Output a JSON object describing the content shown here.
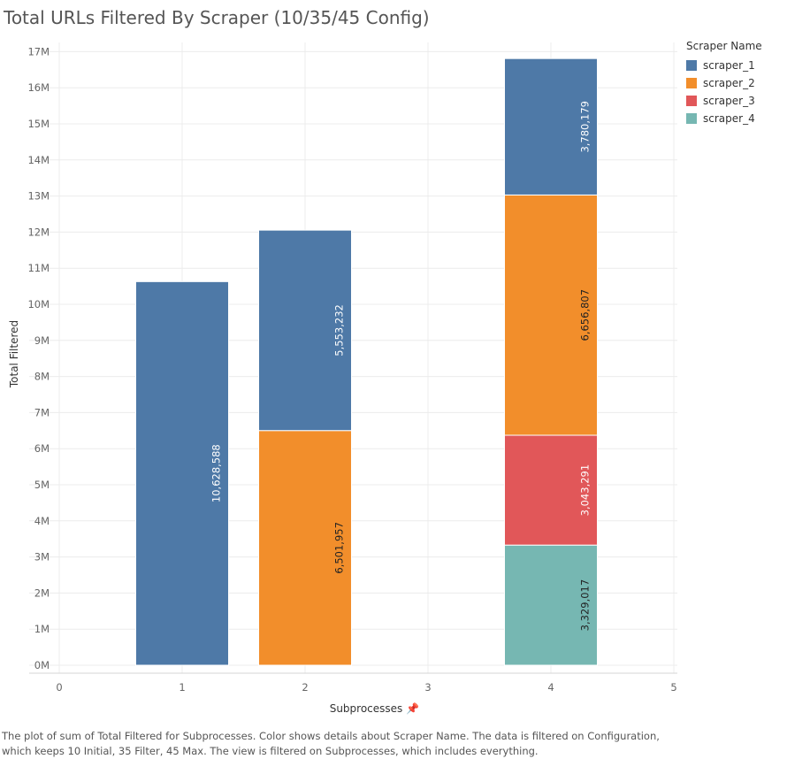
{
  "title": "Total URLs Filtered By Scraper (10/35/45 Config)",
  "legend": {
    "title": "Scraper Name",
    "items": [
      {
        "label": "scraper_1",
        "color": "#4e79a7"
      },
      {
        "label": "scraper_2",
        "color": "#f28e2b"
      },
      {
        "label": "scraper_3",
        "color": "#e15759"
      },
      {
        "label": "scraper_4",
        "color": "#76b7b2"
      }
    ]
  },
  "caption": "The plot of sum of Total Filtered for Subprocesses.  Color shows details about Scraper Name. The data is filtered on Configuration, which keeps 10 Initial, 35 Filter, 45 Max. The view is filtered on Subprocesses, which includes everything.",
  "chart_data": {
    "type": "bar",
    "stacked": true,
    "title": "Total URLs Filtered By Scraper (10/35/45 Config)",
    "xlabel": "Subprocesses",
    "ylabel": "Total Filtered",
    "xlim": [
      0,
      5
    ],
    "ylim": [
      0,
      17000000
    ],
    "xticks": [
      "0",
      "1",
      "2",
      "3",
      "4",
      "5"
    ],
    "yticks": [
      "0M",
      "1M",
      "2M",
      "3M",
      "4M",
      "5M",
      "6M",
      "7M",
      "8M",
      "9M",
      "10M",
      "11M",
      "12M",
      "13M",
      "14M",
      "15M",
      "16M",
      "17M"
    ],
    "grid": true,
    "legend_position": "top-right",
    "x": [
      1,
      2,
      4
    ],
    "series": [
      {
        "name": "scraper_4",
        "color": "#76b7b2",
        "values": [
          0,
          0,
          3329017
        ],
        "labels": [
          "",
          "",
          "3,329,017"
        ]
      },
      {
        "name": "scraper_3",
        "color": "#e15759",
        "values": [
          0,
          0,
          3043291
        ],
        "labels": [
          "",
          "",
          "3,043,291"
        ]
      },
      {
        "name": "scraper_2",
        "color": "#f28e2b",
        "values": [
          0,
          6501957,
          6656807
        ],
        "labels": [
          "",
          "6,501,957",
          "6,656,807"
        ]
      },
      {
        "name": "scraper_1",
        "color": "#4e79a7",
        "values": [
          10628588,
          5553232,
          3780179
        ],
        "labels": [
          "10,628,588",
          "5,553,232",
          "3,780,179"
        ]
      }
    ]
  }
}
